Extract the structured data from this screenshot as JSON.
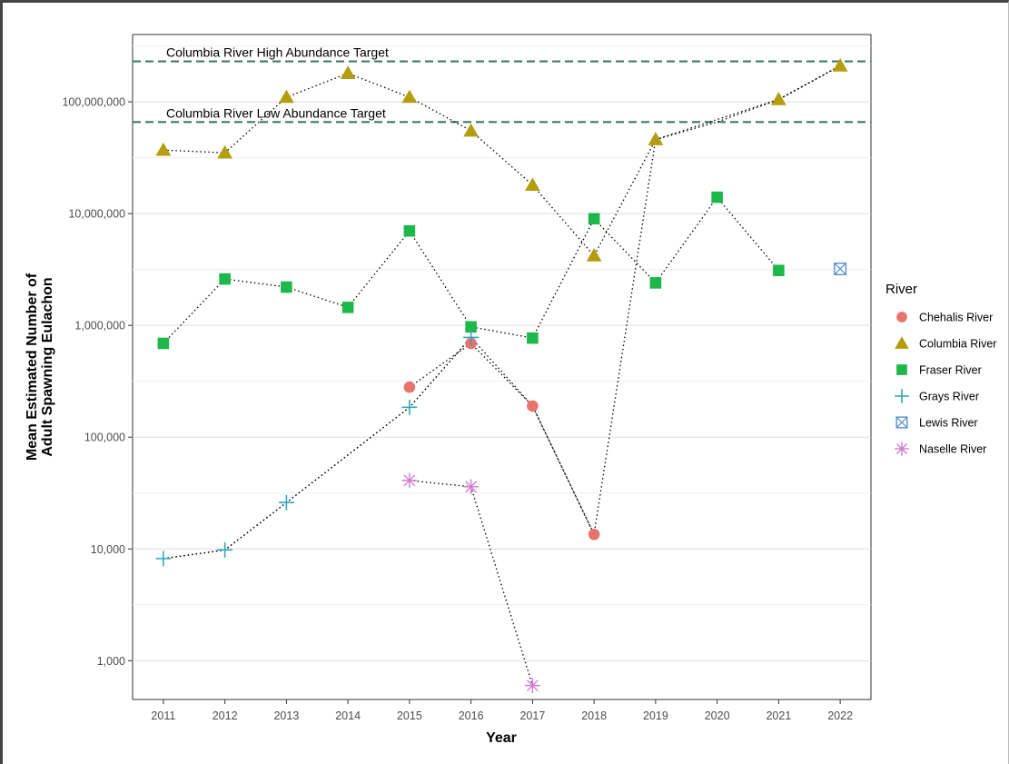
{
  "chart_data": {
    "type": "scatter",
    "title": "",
    "xlabel": "Year",
    "ylabel_lines": [
      "Mean Estimated Number of",
      "Adult Spawning Eulachon"
    ],
    "y_scale": "log10",
    "ylim": [
      450,
      400000000
    ],
    "xlim": [
      2010.5,
      2022.5
    ],
    "x_ticks": [
      2011,
      2012,
      2013,
      2014,
      2015,
      2016,
      2017,
      2018,
      2019,
      2020,
      2021,
      2022
    ],
    "x_tick_labels": [
      "2011",
      "2012",
      "2013",
      "2014",
      "2015",
      "2016",
      "2017",
      "2018",
      "2019",
      "2020",
      "2021",
      "2022"
    ],
    "y_ticks": [
      1000,
      10000,
      100000,
      1000000,
      10000000,
      100000000
    ],
    "y_tick_labels": [
      "1,000",
      "10,000",
      "100,000",
      "1,000,000",
      "10,000,000",
      "100,000,000"
    ],
    "grid": true,
    "legend": {
      "title": "River",
      "placement": "right",
      "entries": [
        "Chehalis River",
        "Columbia River",
        "Fraser River",
        "Grays River",
        "Lewis River",
        "Naselle River"
      ]
    },
    "reference_lines": [
      {
        "label": "Columbia River High Abundance Target",
        "value": 230000000,
        "color": "#3e7a65"
      },
      {
        "label": "Columbia River Low Abundance Target",
        "value": 66000000,
        "color": "#3e7a65"
      }
    ],
    "series": [
      {
        "name": "Chehalis River",
        "marker": "circle",
        "color": "#e8736c",
        "x": [
          2015,
          2016,
          2017,
          2018
        ],
        "y": [
          280000,
          690000,
          190000,
          13500
        ]
      },
      {
        "name": "Columbia River",
        "marker": "triangle",
        "color": "#b49d0e",
        "x": [
          2011,
          2012,
          2013,
          2014,
          2015,
          2016,
          2017,
          2018,
          2019,
          2021,
          2022
        ],
        "y": [
          37000000,
          35000000,
          110000000,
          180000000,
          110000000,
          55000000,
          18000000,
          4200000,
          46000000,
          105000000,
          210000000
        ]
      },
      {
        "name": "Fraser River",
        "marker": "square",
        "color": "#1eb84a",
        "x": [
          2011,
          2012,
          2013,
          2014,
          2015,
          2016,
          2017,
          2018,
          2019,
          2020,
          2021
        ],
        "y": [
          690000,
          2600000,
          2200000,
          1450000,
          7000000,
          970000,
          770000,
          9000000,
          2400000,
          14000000,
          3100000
        ]
      },
      {
        "name": "Grays River",
        "marker": "plus",
        "color": "#2ea8bd",
        "x": [
          2011,
          2012,
          2013,
          2015,
          2016
        ],
        "y": [
          8200,
          9800,
          26000,
          185000,
          780000
        ]
      },
      {
        "name": "Lewis River",
        "marker": "boxx",
        "color": "#5b8fc9",
        "x": [
          2022
        ],
        "y": [
          3200000
        ]
      },
      {
        "name": "Naselle River",
        "marker": "asterisk",
        "color": "#d57bd5",
        "x": [
          2015,
          2016,
          2017
        ],
        "y": [
          41000,
          36000,
          600
        ]
      }
    ],
    "connecting_line": {
      "style": "dotted",
      "color": "#000000",
      "x": [
        2011,
        2012,
        2013,
        2015,
        2016,
        2017,
        2018,
        2019,
        2020,
        2021,
        2022
      ],
      "y": [
        8200,
        9800,
        26000,
        185000,
        780000,
        190000,
        13500,
        46000000,
        66000000,
        105000000,
        210000000
      ]
    }
  }
}
